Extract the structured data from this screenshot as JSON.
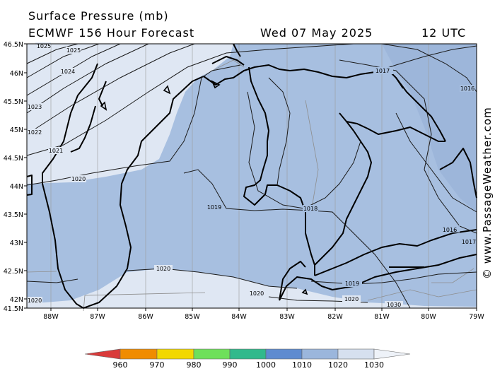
{
  "header": {
    "title": "Surface Pressure (mb)",
    "model": "ECMWF 156 Hour Forecast",
    "date": "Wed 07 May 2025",
    "time": "12 UTC"
  },
  "credit": "© www.PassageWeather.com",
  "latitudes": [
    "46.5N",
    "46N",
    "45.5N",
    "45N",
    "44.5N",
    "44N",
    "43.5N",
    "43N",
    "42.5N",
    "42N",
    "41.5N"
  ],
  "longitudes": [
    "88W",
    "87W",
    "86W",
    "85W",
    "84W",
    "83W",
    "82W",
    "81W",
    "80W",
    "79W"
  ],
  "isobars": [
    "1025",
    "1024",
    "1023",
    "1022",
    "1021",
    "1020",
    "1019",
    "1018",
    "1017",
    "1016",
    "1017",
    "1019",
    "1020",
    "1020",
    "1020",
    "1030"
  ],
  "legend": {
    "labels": [
      "960",
      "970",
      "980",
      "990",
      "1000",
      "1010",
      "1020",
      "1030"
    ],
    "colors": [
      "#d93b3b",
      "#f08c00",
      "#f2d800",
      "#6ee05a",
      "#31b98c",
      "#5e8bd0",
      "#9bb6dc",
      "#d6e0ef",
      "#eef2f8"
    ]
  },
  "colors": {
    "low_band": "#a7bfe0",
    "high_band": "#dfe7f3",
    "coast": "#000000",
    "isobar": "#1a1a1a"
  }
}
